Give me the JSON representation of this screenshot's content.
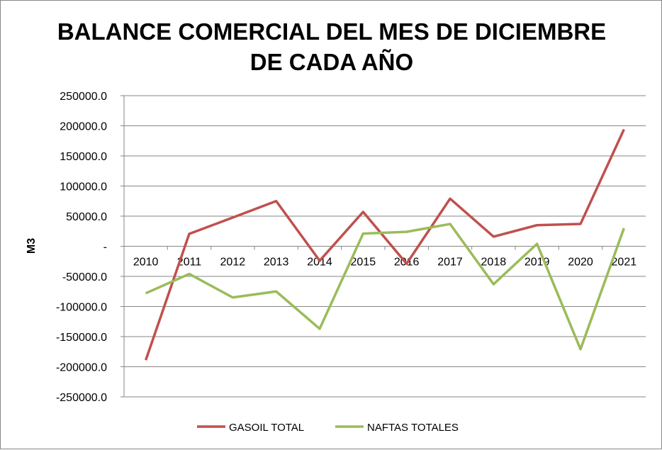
{
  "chart_data": {
    "type": "line",
    "title_lines": [
      "BALANCE COMERCIAL DEL MES DE DICIEMBRE",
      "DE CADA AÑO"
    ],
    "xlabel": "",
    "ylabel": "M3",
    "categories": [
      "2010",
      "2011",
      "2012",
      "2013",
      "2014",
      "2015",
      "2016",
      "2017",
      "2018",
      "2019",
      "2020",
      "2021"
    ],
    "ylim": [
      -250000,
      250000
    ],
    "yticks": [
      250000,
      200000,
      150000,
      100000,
      50000,
      0,
      -50000,
      -100000,
      -150000,
      -200000,
      -250000
    ],
    "ytick_labels": [
      "250000.0",
      "200000.0",
      "150000.0",
      "100000.0",
      "50000.0",
      "-",
      "-50000.0",
      "-100000.0",
      "-150000.0",
      "-200000.0",
      "-250000.0"
    ],
    "grid": true,
    "legend_position": "bottom",
    "series": [
      {
        "name": "GASOIL TOTAL",
        "color": "#C0504D",
        "values": [
          -189000,
          20600,
          47600,
          75000,
          -24000,
          57000,
          -29000,
          79000,
          16000,
          35000,
          37000,
          194000
        ]
      },
      {
        "name": "NAFTAS TOTALES",
        "color": "#9BBB59",
        "values": [
          -78000,
          -46000,
          -85000,
          -75000,
          -137000,
          21000,
          24000,
          37000,
          -63000,
          4000,
          -171000,
          30000
        ]
      }
    ]
  }
}
